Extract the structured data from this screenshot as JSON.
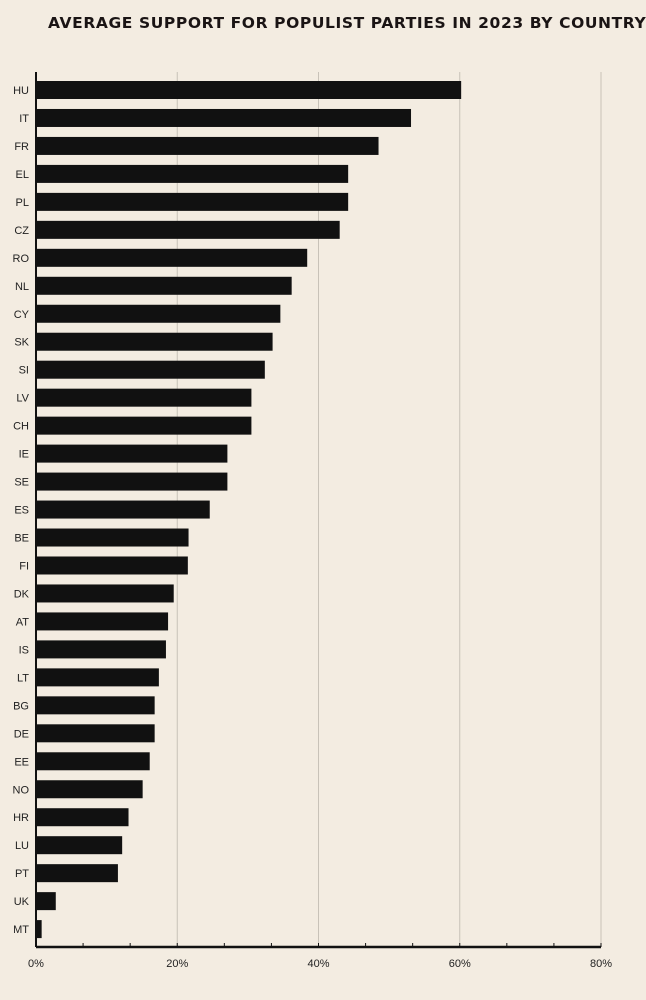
{
  "chart_data": {
    "type": "bar",
    "orientation": "horizontal",
    "title": "AVERAGE SUPPORT FOR POPULIST PARTIES IN 2023 BY COUNTRY",
    "categories": [
      "HU",
      "IT",
      "FR",
      "EL",
      "PL",
      "CZ",
      "RO",
      "NL",
      "CY",
      "SK",
      "SI",
      "LV",
      "CH",
      "IE",
      "SE",
      "ES",
      "BE",
      "FI",
      "DK",
      "AT",
      "IS",
      "LT",
      "BG",
      "DE",
      "EE",
      "NO",
      "HR",
      "LU",
      "PT",
      "UK",
      "MT"
    ],
    "values": [
      60.2,
      53.1,
      48.5,
      44.2,
      44.2,
      43.0,
      38.4,
      36.2,
      34.6,
      33.5,
      32.4,
      30.5,
      30.5,
      27.1,
      27.1,
      24.6,
      21.6,
      21.5,
      19.5,
      18.7,
      18.4,
      17.4,
      16.8,
      16.8,
      16.1,
      15.1,
      13.1,
      12.2,
      11.6,
      2.8,
      0.8
    ],
    "xlim": [
      0,
      80
    ],
    "xticks": [
      "0%",
      "20%",
      "40%",
      "60%",
      "80%"
    ],
    "xlabel": "",
    "ylabel": "",
    "grid": "vertical",
    "bar_color": "#111111",
    "background": "#f3ece1"
  }
}
